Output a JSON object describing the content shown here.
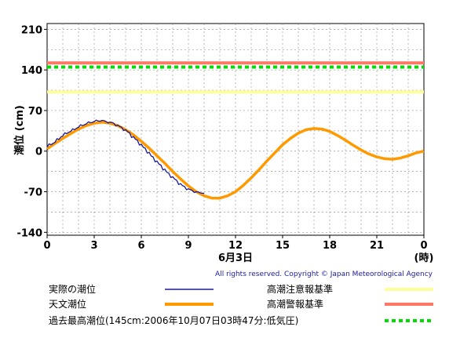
{
  "chart_data": {
    "type": "line",
    "ylabel": "潮位 (cm)",
    "xlabel": "6月3日",
    "x_unit_label": "(時)",
    "ylim": [
      -145,
      220
    ],
    "xlim": [
      0,
      24
    ],
    "yticks": [
      "210",
      "140",
      "70",
      "0",
      "-70",
      "-140"
    ],
    "ytick_values": [
      210,
      140,
      70,
      0,
      -70,
      -140
    ],
    "xticks": [
      "0",
      "3",
      "6",
      "9",
      "12",
      "15",
      "18",
      "21",
      "0"
    ],
    "xtick_values": [
      0,
      3,
      6,
      9,
      12,
      15,
      18,
      21,
      24
    ],
    "grid": true,
    "series": [
      {
        "name": "実際の潮位",
        "color": "#1a1a9e",
        "x": [
          0,
          0.25,
          0.5,
          0.75,
          1,
          1.25,
          1.5,
          1.75,
          2,
          2.25,
          2.5,
          2.75,
          3,
          3.25,
          3.5,
          3.75,
          4,
          4.25,
          4.5,
          4.75,
          5,
          5.25,
          5.5,
          5.75,
          6,
          6.25,
          6.5,
          6.75,
          7,
          7.25,
          7.5,
          7.75,
          8,
          8.25,
          8.5,
          8.75,
          9,
          9.25,
          9.5,
          9.75,
          10
        ],
        "y": [
          7,
          11,
          15,
          20,
          26,
          30,
          34,
          37,
          41,
          44,
          47,
          49,
          51,
          52,
          53,
          51,
          50,
          48,
          45,
          41,
          37,
          32,
          25,
          19,
          12,
          5,
          -2,
          -10,
          -17,
          -24,
          -31,
          -38,
          -44,
          -50,
          -56,
          -61,
          -65,
          -68,
          -70,
          -72,
          -73
        ]
      },
      {
        "name": "天文潮位",
        "color": "#ff9900",
        "x": [
          0,
          0.5,
          1,
          1.5,
          2,
          2.5,
          3,
          3.5,
          4,
          4.5,
          5,
          5.5,
          6,
          6.5,
          7,
          7.5,
          8,
          8.5,
          9,
          9.5,
          10,
          10.5,
          11,
          11.5,
          12,
          12.5,
          13,
          13.5,
          14,
          14.5,
          15,
          15.5,
          16,
          16.5,
          17,
          17.5,
          18,
          18.5,
          19,
          19.5,
          20,
          20.5,
          21,
          21.5,
          22,
          22.5,
          23,
          23.5,
          24
        ],
        "y": [
          4,
          13,
          22,
          30,
          38,
          44,
          48,
          50,
          48,
          44,
          37,
          28,
          17,
          5,
          -8,
          -21,
          -35,
          -48,
          -60,
          -70,
          -77,
          -81,
          -81,
          -77,
          -70,
          -59,
          -46,
          -32,
          -17,
          -3,
          11,
          22,
          31,
          37,
          39,
          38,
          34,
          27,
          19,
          10,
          2,
          -5,
          -10,
          -13,
          -14,
          -12,
          -8,
          -3,
          0
        ]
      }
    ],
    "reference_lines": [
      {
        "name": "高潮注意報基準",
        "value": 102,
        "color": "#ffff99",
        "style": "solid"
      },
      {
        "name": "高潮警報基準",
        "value": 152,
        "color": "#ff7766",
        "style": "solid"
      },
      {
        "name": "過去最高潮位(145cm:2006年10月07日03時47分:低気圧)",
        "value": 145,
        "color": "#00dd00",
        "style": "dashed"
      }
    ],
    "copyright": "All rights reserved. Copyright © Japan Meteorological Agency"
  }
}
